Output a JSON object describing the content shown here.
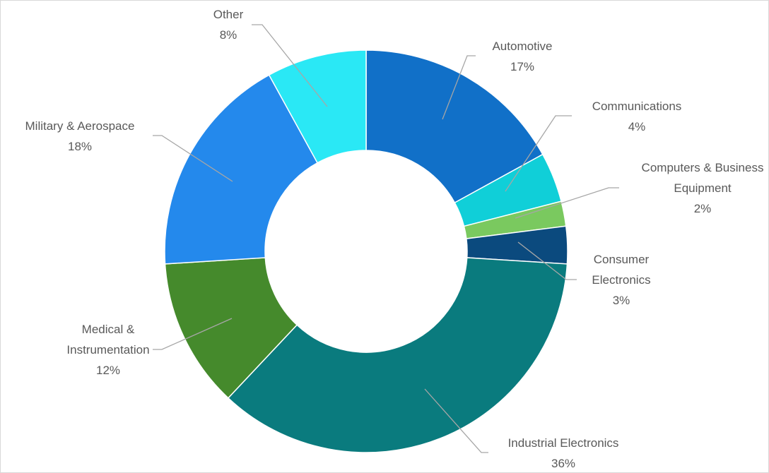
{
  "chart_data": {
    "type": "donut",
    "categories": [
      "Automotive",
      "Communications",
      "Computers & Business Equipment",
      "Consumer Electronics",
      "Industrial Electronics",
      "Medical & Instrumentation",
      "Military & Aerospace",
      "Other"
    ],
    "values": [
      17,
      4,
      2,
      3,
      36,
      12,
      18,
      8
    ],
    "value_labels": [
      "17%",
      "4%",
      "2%",
      "3%",
      "36%",
      "12%",
      "18%",
      "8%"
    ],
    "colors": [
      "#1170c8",
      "#10cfd8",
      "#7ac95f",
      "#0b4a7e",
      "#0a7b7e",
      "#458a2c",
      "#2489ec",
      "#2ae8f5"
    ]
  }
}
